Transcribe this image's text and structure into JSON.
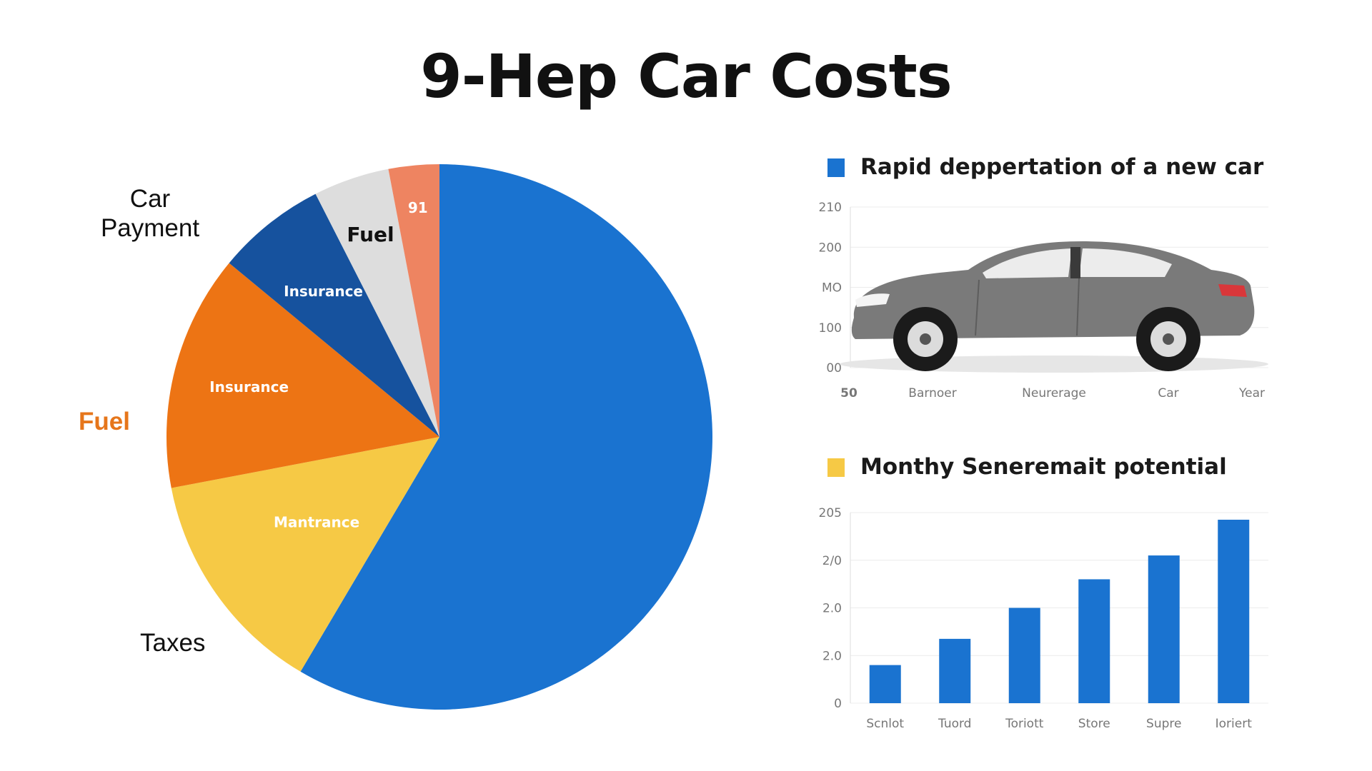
{
  "title": "9-Hep Car Costs",
  "chart_data": [
    {
      "type": "pie",
      "slices": [
        {
          "label": "",
          "value": 58.5,
          "color": "#1a73d0"
        },
        {
          "label": "Mantrance",
          "value": 13.5,
          "color": "#f6c945"
        },
        {
          "label": "Insurance",
          "value": 14.0,
          "color": "#ed7414"
        },
        {
          "label": "Insurance",
          "value": 6.5,
          "color": "#16529e"
        },
        {
          "label": "Fuel",
          "value": 4.5,
          "color": "#dddddd"
        },
        {
          "label": "91",
          "value": 3.0,
          "color": "#ee8461"
        }
      ],
      "external_labels": [
        "Car Payment",
        "Fuel",
        "Taxes"
      ],
      "external_label_colors": {
        "Fuel": "#e6761b"
      }
    },
    {
      "type": "line",
      "title": "Rapid deppertation of a new car",
      "legend_color": "#1a73d0",
      "y_ticks": [
        "210",
        "200",
        "MO",
        "100",
        "00"
      ],
      "x_ticks": [
        "50",
        "Barnoer",
        "Neurerage",
        "Car",
        "Year"
      ],
      "illustration": "car-image",
      "grid": true
    },
    {
      "type": "bar",
      "title": "Monthy Seneremait potential",
      "legend_color": "#f6c945",
      "categories": [
        "Scnlot",
        "Tuord",
        "Toriott",
        "Store",
        "Supre",
        "Ioriert"
      ],
      "values": [
        0.8,
        1.35,
        2.0,
        2.6,
        3.1,
        3.85
      ],
      "y_ticks": [
        "205",
        "2/0",
        "2.0",
        "2.0",
        "0"
      ],
      "color": "#1a73d0",
      "grid": true
    }
  ]
}
